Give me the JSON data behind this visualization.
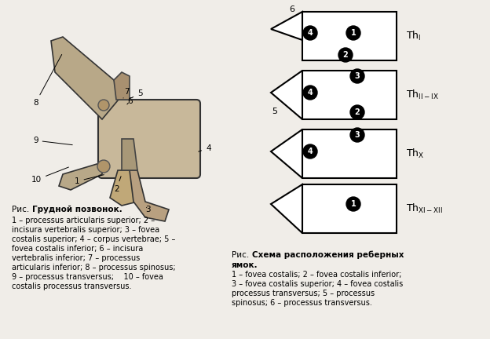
{
  "bg_color": "#f5f5f0",
  "left_caption_bold": "Рис. Грудной позвонок.",
  "left_caption_lines": [
    "1 – processus articularis superior; 2 –",
    "incisura vertebralis superior; 3 – fovea",
    "costalis superior; 4 – corpus vertebrae; 5 –",
    "fovea costalis inferior; 6 – incisura",
    "vertebralis inferior; 7 – processus",
    "articularis inferior; 8 – processus spinosus;",
    "9 – processus transversus;    10 – fovea",
    "costalis processus transversus."
  ],
  "right_caption_bold": "Рис. Схема расположения реберных",
  "right_caption_bold2": "ямок.",
  "right_caption_lines": [
    "1 – fovea costalis; 2 – fovea costalis inferior;",
    "3 – fovea costalis superior; 4 – fovea costalis",
    "processus transversus; 5 – processus",
    "spinosus; 6 – processus transversus."
  ],
  "vertebrae": [
    {
      "label": "Th$_\\mathrm{I}$",
      "circles_top": [
        {
          "num": "4",
          "pos": "left_top"
        },
        {
          "num": "1",
          "pos": "center_top"
        }
      ],
      "circles_bot": [
        {
          "num": "2",
          "pos": "center_bot"
        }
      ],
      "has_top_triangle": true,
      "has_mid_triangle": false,
      "label6": true
    },
    {
      "label": "Th$_\\mathrm{II-IX}$",
      "circles_top": [
        {
          "num": "3",
          "pos": "center_top"
        }
      ],
      "circles_mid": [
        {
          "num": "4",
          "pos": "left_mid"
        }
      ],
      "circles_bot": [
        {
          "num": "2",
          "pos": "center_bot"
        }
      ],
      "has_top_triangle": false,
      "has_mid_triangle": true,
      "label5": true
    },
    {
      "label": "Th$_\\mathrm{X}$",
      "circles_top": [
        {
          "num": "3",
          "pos": "center_top"
        }
      ],
      "circles_mid": [
        {
          "num": "4",
          "pos": "left_mid"
        }
      ],
      "circles_bot": [],
      "has_top_triangle": false,
      "has_mid_triangle": true
    },
    {
      "label": "Th$_\\mathrm{XI-XII}$",
      "circles_top": [],
      "circles_mid": [
        {
          "num": "1",
          "pos": "center_mid"
        }
      ],
      "circles_bot": [],
      "has_top_triangle": false,
      "has_mid_triangle": true
    }
  ]
}
